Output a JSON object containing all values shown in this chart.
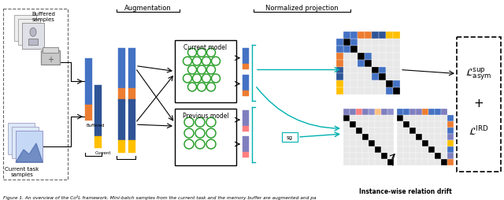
{
  "bg_color": "#ffffff",
  "augmentation_label": "Augmentation",
  "normalized_proj_label": "Normalized projection",
  "current_model_label": "Current model",
  "previous_model_label": "Previous model",
  "buffered_label": "Buffered",
  "current_label": "Current",
  "sg_label": "sg",
  "instance_wise_label": "Instance-wise relation drift",
  "loss_sup": "$\\mathcal{L}^{\\mathrm{sup}}_{\\mathrm{asym}}$",
  "loss_ird": "$\\mathcal{L}^{\\mathrm{IRD}}$",
  "plus_sign": "+",
  "buffered_samples_label": "Buffered\nsamples",
  "current_task_label": "Current task\nsamples",
  "caption": "Figure 1. An overview of the Co²L framework. Mini-batch samples from the current task and the memory buffer are augmented and pa",
  "bar_blue": "#4472c4",
  "bar_dark_blue": "#2f5496",
  "bar_orange": "#ed7d31",
  "bar_yellow": "#ffc000",
  "bar_purple": "#7f7fbf",
  "bar_pink": "#ff8080",
  "green_model": "#2ca02c",
  "cyan": "#00b0b0",
  "black": "#111111",
  "light_gray": "#e0e0e0",
  "mid_gray": "#c0c0c0",
  "dark_gray": "#888888",
  "matrix_bg": "#e8e8e8",
  "matrix_diag": "#111111",
  "matrix_blue": "#4472c4",
  "matrix_black_sq": "#000000"
}
